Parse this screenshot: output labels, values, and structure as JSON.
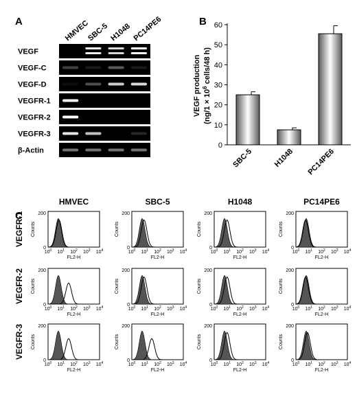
{
  "panels": {
    "a": "A",
    "b": "B",
    "c": "C"
  },
  "panel_a": {
    "lanes": [
      "HMVEC",
      "SBC-5",
      "H1048",
      "PC14PE6"
    ],
    "rows": [
      "VEGF",
      "VEGF-C",
      "VEGF-D",
      "VEGFR-1",
      "VEGFR-2",
      "VEGFR-3",
      "β-Actin"
    ],
    "band_intensity": [
      [
        0.0,
        0.95,
        0.85,
        1.0
      ],
      [
        0.25,
        0.1,
        0.35,
        0.1
      ],
      [
        0.05,
        0.3,
        0.8,
        0.85
      ],
      [
        0.95,
        0.0,
        0.0,
        0.0
      ],
      [
        1.0,
        0.0,
        0.0,
        0.0
      ],
      [
        0.9,
        0.75,
        0.0,
        0.15
      ],
      [
        0.45,
        0.45,
        0.45,
        0.45
      ]
    ],
    "band_color": "#ffffff",
    "gel_color": "#000000"
  },
  "chart_data": {
    "type": "bar",
    "categories": [
      "SBC-5",
      "H1048",
      "PC14PE6"
    ],
    "values": [
      25,
      7.5,
      55.5
    ],
    "errors": [
      1.5,
      1.0,
      4.0
    ],
    "ylim": [
      0,
      60
    ],
    "yticks": [
      "0",
      "10",
      "20",
      "30",
      "40",
      "50",
      "60"
    ],
    "ylabel_line1": "VEGF production",
    "ylabel_line2_pre": "(ng/1 × 10",
    "ylabel_sup": "6",
    "ylabel_line2_post": " cells/48 h)",
    "grid": false
  },
  "panel_c": {
    "columns": [
      "HMVEC",
      "SBC-5",
      "H1048",
      "PC14PE6"
    ],
    "rows": [
      "VEGFR-1",
      "VEGFR-2",
      "VEGFR-3"
    ],
    "ylabel": "Counts",
    "xlabel": "FL2-H",
    "y_ticks": [
      "0",
      "200"
    ],
    "x_tick_exponents": [
      "0",
      "1",
      "2",
      "3",
      "4"
    ],
    "x_tick_base": "10",
    "filled_peak": [
      [
        0.8,
        0.8,
        0.8,
        0.8
      ],
      [
        0.8,
        0.8,
        0.8,
        0.8
      ],
      [
        0.8,
        0.8,
        0.8,
        0.8
      ]
    ],
    "open_peak": [
      [
        0.85,
        0.95,
        1.0,
        0.75
      ],
      [
        1.6,
        0.95,
        1.0,
        0.75
      ],
      [
        1.6,
        1.55,
        1.0,
        0.9
      ]
    ],
    "fill_color": "#555555"
  }
}
